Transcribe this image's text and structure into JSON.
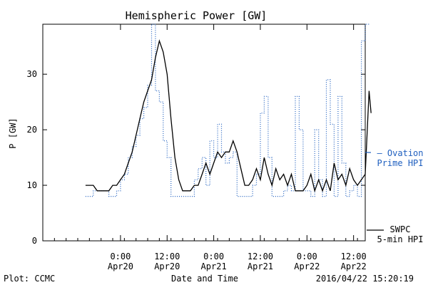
{
  "chart_data": {
    "type": "line",
    "title": "Hemispheric Power [GW]",
    "xlabel": "Date and Time",
    "ylabel": "P [GW]",
    "ylim": [
      0,
      39
    ],
    "xlim_hours": [
      -20,
      63
    ],
    "x_ticks": [
      {
        "hour": 0,
        "time": "0:00",
        "date": "Apr20"
      },
      {
        "hour": 12,
        "time": "12:00",
        "date": "Apr20"
      },
      {
        "hour": 24,
        "time": "0:00",
        "date": "Apr21"
      },
      {
        "hour": 36,
        "time": "12:00",
        "date": "Apr21"
      },
      {
        "hour": 48,
        "time": "0:00",
        "date": "Apr22"
      },
      {
        "hour": 60,
        "time": "12:00",
        "date": "Apr22"
      }
    ],
    "y_ticks": [
      0,
      10,
      20,
      30
    ],
    "series": [
      {
        "name": "SWPC 5-min HPI",
        "style": "solid",
        "color": "#000000",
        "points": [
          [
            -9,
            10
          ],
          [
            -7,
            10
          ],
          [
            -6,
            9
          ],
          [
            -3,
            9
          ],
          [
            -2,
            10
          ],
          [
            -1,
            10
          ],
          [
            0,
            11
          ],
          [
            1,
            12
          ],
          [
            2,
            14
          ],
          [
            3,
            16
          ],
          [
            4,
            19
          ],
          [
            5,
            22
          ],
          [
            6,
            25
          ],
          [
            7,
            27
          ],
          [
            8,
            29
          ],
          [
            9,
            33
          ],
          [
            10,
            36
          ],
          [
            11,
            34
          ],
          [
            12,
            30
          ],
          [
            13,
            22
          ],
          [
            14,
            15
          ],
          [
            15,
            11
          ],
          [
            16,
            9
          ],
          [
            18,
            9
          ],
          [
            19,
            10
          ],
          [
            20,
            10
          ],
          [
            21,
            12
          ],
          [
            22,
            14
          ],
          [
            23,
            12
          ],
          [
            24,
            14
          ],
          [
            25,
            16
          ],
          [
            26,
            15
          ],
          [
            27,
            16
          ],
          [
            28,
            16
          ],
          [
            29,
            18
          ],
          [
            30,
            16
          ],
          [
            31,
            13
          ],
          [
            32,
            10
          ],
          [
            33,
            10
          ],
          [
            34,
            11
          ],
          [
            35,
            13
          ],
          [
            36,
            11
          ],
          [
            37,
            15
          ],
          [
            38,
            12
          ],
          [
            39,
            10
          ],
          [
            40,
            13
          ],
          [
            41,
            11
          ],
          [
            42,
            12
          ],
          [
            43,
            10
          ],
          [
            44,
            12
          ],
          [
            45,
            9
          ],
          [
            47,
            9
          ],
          [
            48,
            10
          ],
          [
            49,
            12
          ],
          [
            50,
            9
          ],
          [
            51,
            11
          ],
          [
            52,
            9
          ],
          [
            53,
            11
          ],
          [
            54,
            9
          ],
          [
            55,
            14
          ],
          [
            56,
            11
          ],
          [
            57,
            12
          ],
          [
            58,
            10
          ],
          [
            59,
            13
          ],
          [
            60,
            11
          ],
          [
            61,
            10
          ],
          [
            62,
            11
          ],
          [
            63,
            12
          ],
          [
            64,
            27
          ],
          [
            64.5,
            23
          ]
        ]
      },
      {
        "name": "Ovation Prime HPI",
        "style": "dotted",
        "color": "#1f5fbf",
        "points": [
          [
            -9,
            8
          ],
          [
            -7,
            9
          ],
          [
            -4,
            9
          ],
          [
            -3,
            8
          ],
          [
            -1,
            9
          ],
          [
            0,
            11
          ],
          [
            1,
            12
          ],
          [
            2,
            15
          ],
          [
            3,
            17
          ],
          [
            4,
            19
          ],
          [
            5,
            22
          ],
          [
            6,
            24
          ],
          [
            7,
            28
          ],
          [
            8,
            39
          ],
          [
            9,
            27
          ],
          [
            10,
            25
          ],
          [
            11,
            18
          ],
          [
            12,
            15
          ],
          [
            13,
            8
          ],
          [
            18,
            8
          ],
          [
            19,
            11
          ],
          [
            20,
            13
          ],
          [
            21,
            15
          ],
          [
            22,
            10
          ],
          [
            23,
            18
          ],
          [
            24,
            15
          ],
          [
            25,
            21
          ],
          [
            26,
            16
          ],
          [
            27,
            14
          ],
          [
            28,
            15
          ],
          [
            29,
            16
          ],
          [
            30,
            8
          ],
          [
            33,
            8
          ],
          [
            34,
            10
          ],
          [
            35,
            12
          ],
          [
            36,
            23
          ],
          [
            37,
            26
          ],
          [
            38,
            15
          ],
          [
            39,
            8
          ],
          [
            42,
            9
          ],
          [
            43,
            10
          ],
          [
            44,
            9
          ],
          [
            45,
            26
          ],
          [
            46,
            20
          ],
          [
            47,
            9
          ],
          [
            49,
            8
          ],
          [
            50,
            20
          ],
          [
            51,
            11
          ],
          [
            52,
            8
          ],
          [
            53,
            29
          ],
          [
            54,
            21
          ],
          [
            55,
            8
          ],
          [
            56,
            26
          ],
          [
            57,
            14
          ],
          [
            58,
            8
          ],
          [
            59,
            9
          ],
          [
            60,
            10
          ],
          [
            61,
            8
          ],
          [
            62,
            36
          ],
          [
            63,
            39
          ],
          [
            64,
            39
          ]
        ]
      }
    ],
    "legend": {
      "placement": "right",
      "entries": [
        {
          "line1": "— Ovation",
          "line2": "Prime HPI",
          "color": "#1f5fbf"
        },
        {
          "line1": "SWPC",
          "line2": "5-min HPI",
          "color": "#000000"
        }
      ]
    },
    "grid": false
  },
  "footer": {
    "left": "Plot: CCMC",
    "right": "2016/04/22 15:20:19"
  }
}
